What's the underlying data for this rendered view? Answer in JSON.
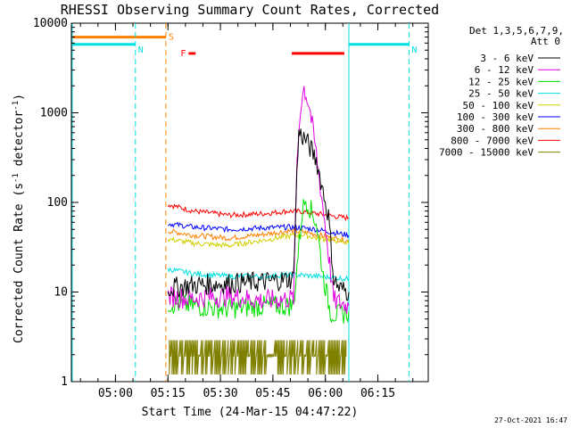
{
  "chart_data": {
    "type": "line",
    "title": "RHESSI Observing Summary Count Rates, Corrected",
    "xlabel": "Start Time (24-Mar-15 04:47:22)",
    "ylabel": "Corrected Count Rate (s",
    "ylabel_sup1": "-1",
    "ylabel_mid": " detector",
    "ylabel_sup2": "-1",
    "ylabel_end": ")",
    "y_scale": "log",
    "ylim": [
      1,
      10000
    ],
    "xlim_minutes": [
      0,
      102
    ],
    "x_ticks": [
      {
        "label": "05:00",
        "min": 12.6
      },
      {
        "label": "05:15",
        "min": 27.6
      },
      {
        "label": "05:30",
        "min": 42.6
      },
      {
        "label": "05:45",
        "min": 57.6
      },
      {
        "label": "06:00",
        "min": 72.6
      },
      {
        "label": "06:15",
        "min": 87.6
      }
    ],
    "y_ticks": [
      {
        "label": "1",
        "value": 1
      },
      {
        "label": "10",
        "value": 10
      },
      {
        "label": "100",
        "value": 100
      },
      {
        "label": "1000",
        "value": 1000
      },
      {
        "label": "10000",
        "value": 10000
      }
    ],
    "legend_header": [
      "Det 1,3,5,6,7,9,",
      "Att 0"
    ],
    "legend_position": "top-right",
    "footer": "27-Oct-2021 16:47",
    "series": [
      {
        "name": "3 - 6 keV",
        "color": "#000000",
        "x": [
          27.6,
          35,
          45,
          55,
          63.5,
          64.2,
          65,
          67,
          70,
          73.5,
          75,
          76.5,
          79.3
        ],
        "values": [
          11,
          12,
          12.5,
          13,
          14,
          120,
          600,
          500,
          300,
          70,
          14,
          11,
          10
        ]
      },
      {
        "name": "6 - 12 keV",
        "color": "#e000e0",
        "x": [
          27.6,
          33,
          45,
          55,
          63.5,
          64.5,
          65.5,
          66.5,
          68,
          70,
          73,
          75,
          79.3
        ],
        "values": [
          9,
          8.5,
          9,
          8,
          8.5,
          300,
          1200,
          1900,
          1200,
          350,
          40,
          8,
          7
        ]
      },
      {
        "name": "12 - 25 keV",
        "color": "#00e000",
        "x": [
          27.6,
          35,
          45,
          55,
          63.5,
          64.5,
          66,
          67,
          70,
          72,
          74,
          76,
          79.3
        ],
        "values": [
          7.5,
          7,
          6.5,
          7,
          7,
          20,
          80,
          110,
          60,
          15,
          6,
          5.5,
          6
        ]
      },
      {
        "name": "25 - 50 keV",
        "color": "#00e0e0",
        "x": [
          27.6,
          35,
          45,
          55,
          62,
          65,
          70,
          75,
          79.3
        ],
        "values": [
          18,
          16,
          15,
          15,
          15.5,
          15.5,
          15,
          14.5,
          14
        ]
      },
      {
        "name": "50 - 100 keV",
        "color": "#d0d000",
        "x": [
          27.6,
          35,
          45,
          55,
          62,
          66,
          70,
          75,
          79.3
        ],
        "values": [
          39,
          35,
          33,
          38,
          42,
          44,
          40,
          38,
          35
        ]
      },
      {
        "name": "100 - 300 keV",
        "color": "#0000ff",
        "x": [
          27.6,
          35,
          45,
          55,
          62,
          66,
          70,
          75,
          79.3
        ],
        "values": [
          58,
          53,
          50,
          52,
          53,
          52,
          50,
          46,
          43
        ]
      },
      {
        "name": "300 - 800 keV",
        "color": "#ff7f00",
        "x": [
          27.6,
          35,
          45,
          55,
          62,
          66,
          70,
          75,
          79.3
        ],
        "values": [
          48,
          43,
          40,
          44,
          48,
          47,
          44,
          40,
          37
        ]
      },
      {
        "name": "800 - 7000 keV",
        "color": "#ff0000",
        "x": [
          27.6,
          35,
          45,
          55,
          62,
          66,
          70,
          75,
          79.3
        ],
        "values": [
          95,
          80,
          72,
          75,
          80,
          79,
          75,
          70,
          67
        ]
      },
      {
        "name": "7000 - 15000 keV",
        "color": "#808000",
        "x": [
          28,
          78.5
        ],
        "values": [
          2,
          2
        ]
      }
    ],
    "flags": [
      {
        "label": "S",
        "color": "#ff7f00",
        "x_start": 0,
        "x_end": 27,
        "y_value": 7000
      },
      {
        "label": "N",
        "color": "#00e0e0",
        "x_start": 0,
        "x_end": 18.3,
        "y_value": 5800
      },
      {
        "label": "N",
        "color": "#00e0e0",
        "x_start": 79.3,
        "x_end": 96.5,
        "y_value": 5800
      },
      {
        "label": "F",
        "color": "#ff0000",
        "x_start": 33.5,
        "x_end": 35.5,
        "y_value": 4600
      },
      {
        "label": "F",
        "color": "#ff0000",
        "x_start": 63,
        "x_end": 78,
        "y_value": 4600
      }
    ],
    "vlines": [
      {
        "min": 18.3,
        "color": "#00e0e0",
        "dash": true
      },
      {
        "min": 27,
        "color": "#ff7f00",
        "dash": true
      },
      {
        "min": 79.3,
        "color": "#00e0e0",
        "dash": false
      },
      {
        "min": 96.5,
        "color": "#00e0e0",
        "dash": true
      },
      {
        "min": 0,
        "color": "#00e0e0",
        "dash": false
      }
    ]
  }
}
